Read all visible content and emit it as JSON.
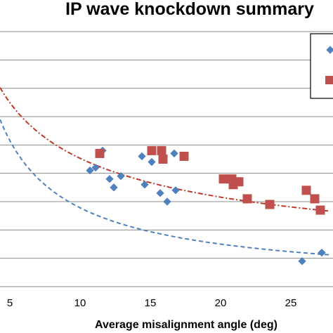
{
  "chart_data": {
    "type": "scatter",
    "title": "IP wave knockdown summary",
    "xlabel": "Average misalignment angle (deg)",
    "ylabel": "",
    "xlim": [
      4.3,
      28
    ],
    "ylim": [
      0,
      9
    ],
    "x_ticks": [
      "5",
      "10",
      "15",
      "20",
      "25"
    ],
    "grid": true,
    "legend_position": "top-right",
    "series": [
      {
        "marker": "diamond",
        "color": "#4F81BD",
        "points": [
          [
            10.7,
            4.1
          ],
          [
            11.1,
            4.2
          ],
          [
            11.6,
            4.8
          ],
          [
            12.1,
            3.8
          ],
          [
            12.4,
            3.5
          ],
          [
            12.9,
            3.9
          ],
          [
            14.4,
            4.6
          ],
          [
            14.6,
            3.6
          ],
          [
            15.1,
            4.4
          ],
          [
            15.7,
            3.3
          ],
          [
            16.2,
            3.0
          ],
          [
            16.7,
            4.7
          ],
          [
            16.8,
            3.4
          ],
          [
            25.8,
            0.9
          ],
          [
            27.2,
            1.2
          ]
        ],
        "trendline": {
          "style": "dashed",
          "color": "#4F81BD",
          "model": "power",
          "a": 21.6,
          "b": -0.89
        }
      },
      {
        "marker": "square",
        "color": "#C0504D",
        "points": [
          [
            11.4,
            4.7
          ],
          [
            15.1,
            4.8
          ],
          [
            15.8,
            4.8
          ],
          [
            15.9,
            4.5
          ],
          [
            17.4,
            4.6
          ],
          [
            20.2,
            3.8
          ],
          [
            20.8,
            3.8
          ],
          [
            20.9,
            3.6
          ],
          [
            21.3,
            3.7
          ],
          [
            21.9,
            3.1
          ],
          [
            23.5,
            2.9
          ],
          [
            26.1,
            3.4
          ],
          [
            26.7,
            3.1
          ],
          [
            27.1,
            2.7
          ]
        ],
        "trendline": {
          "style": "dash-dot",
          "color": "#C0392B",
          "model": "power",
          "a": 15.0,
          "b": -0.52
        }
      }
    ]
  }
}
